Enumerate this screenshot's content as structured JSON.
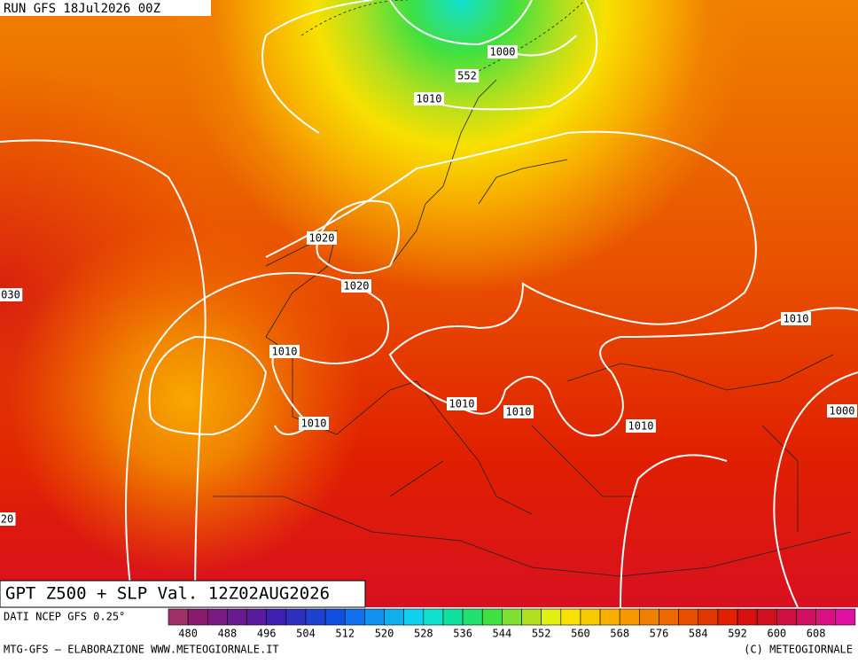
{
  "header": {
    "run": "RUN GFS 18Jul2026 00Z"
  },
  "title": "GPT Z500 + SLP Val. 12Z02AUG2026",
  "isobar_labels": [
    "1000",
    "552",
    "1010",
    "1020",
    "1020",
    "030",
    "1010",
    "1010",
    "1010",
    "1010",
    "1010",
    "1010",
    "1000",
    "20"
  ],
  "legend": {
    "source": "DATI NCEP GFS 0.25°",
    "labels": [
      480,
      488,
      496,
      504,
      512,
      520,
      528,
      536,
      544,
      552,
      560,
      568,
      576,
      584,
      592,
      600,
      608
    ],
    "colors": [
      "#a0306a",
      "#8a1a70",
      "#7a1a80",
      "#6a1a90",
      "#5a1aa0",
      "#4020b0",
      "#3030c0",
      "#2040d0",
      "#1050e0",
      "#1070f0",
      "#1090f0",
      "#10b0f0",
      "#10d0f0",
      "#10e0d0",
      "#10e0a0",
      "#20e070",
      "#40e040",
      "#80e030",
      "#b0e020",
      "#e0f010",
      "#f8e000",
      "#f8c800",
      "#f8b000",
      "#f89800",
      "#f08000",
      "#f06800",
      "#e85000",
      "#e03800",
      "#e02000",
      "#d81010",
      "#d01020",
      "#d01040",
      "#d01060",
      "#d81080",
      "#e010a0"
    ]
  },
  "footer": {
    "credit": "MTG-GFS — ELABORAZIONE WWW.METEOGIORNALE.IT",
    "copyright": "(C) METEOGIORNALE"
  }
}
